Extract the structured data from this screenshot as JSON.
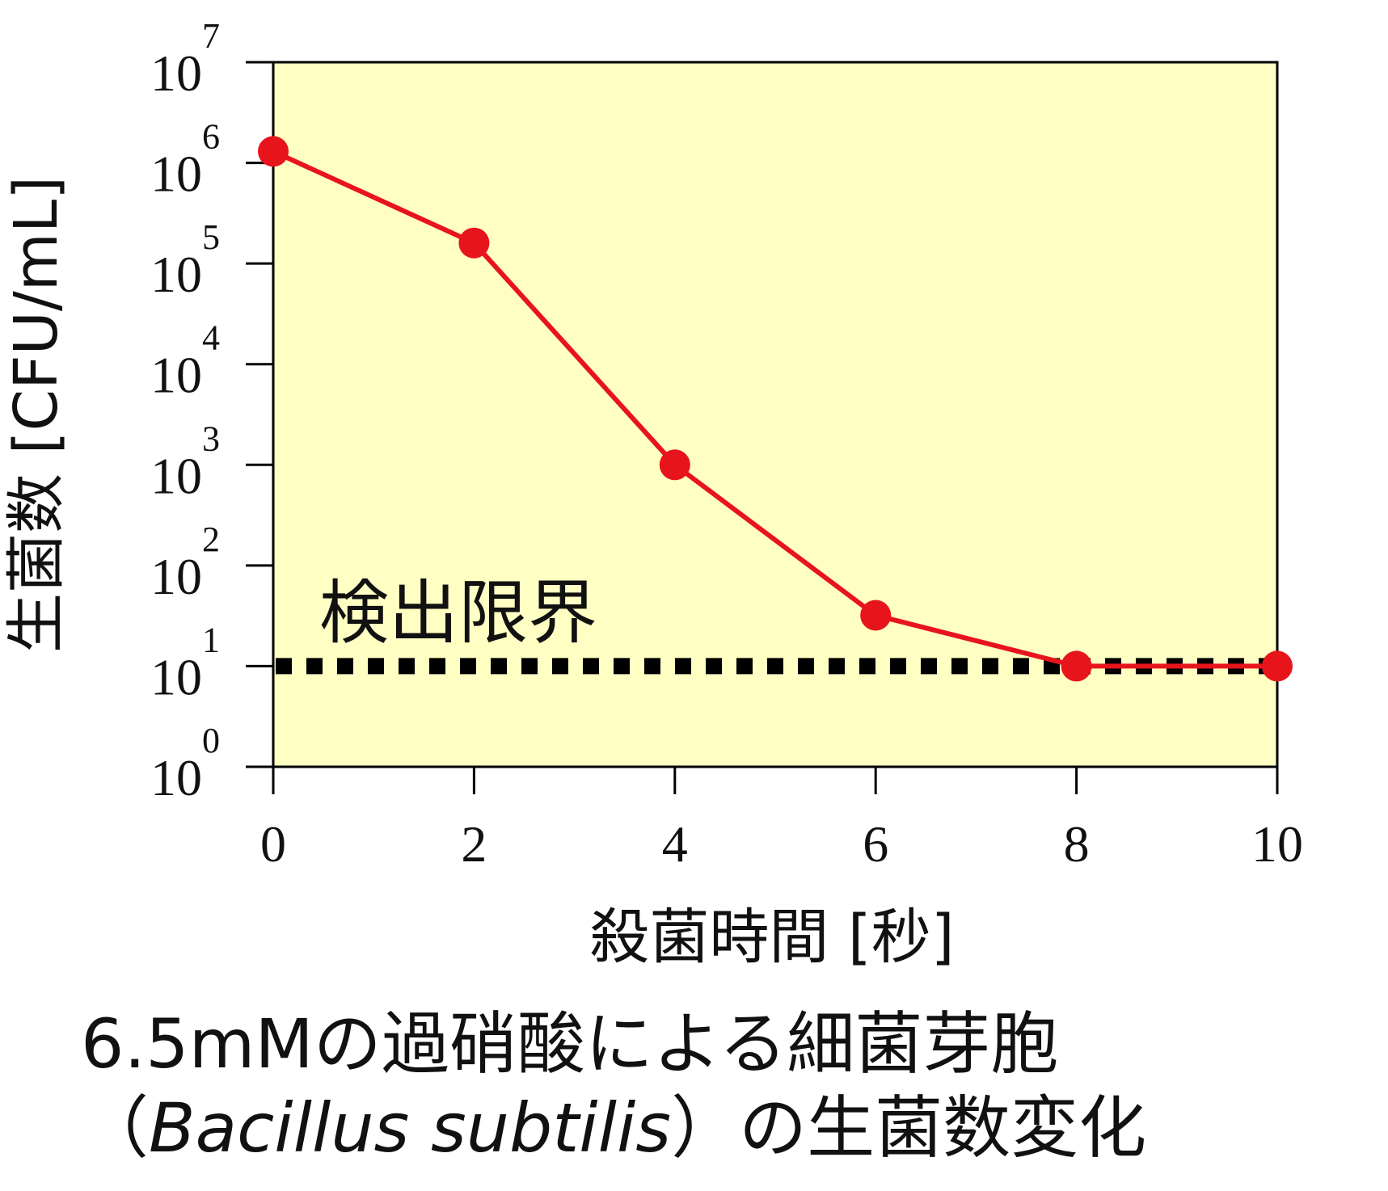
{
  "chart_data": {
    "type": "line",
    "x": [
      0,
      2,
      4,
      6,
      8,
      10
    ],
    "series": [
      {
        "values": [
          1300000,
          160000,
          1000,
          32,
          10,
          10
        ],
        "color": "#e8141c",
        "marker": "circle"
      }
    ],
    "xlabel": "殺菌時間 [秒]",
    "ylabel": "生菌数 [CFU/mL]",
    "xlim": [
      0,
      10
    ],
    "ylim": [
      1,
      10000000
    ],
    "y_scale": "log",
    "x_ticks": [
      "0",
      "2",
      "4",
      "6",
      "8",
      "10"
    ],
    "y_ticks": [
      {
        "base": "10",
        "exp": "0"
      },
      {
        "base": "10",
        "exp": "1"
      },
      {
        "base": "10",
        "exp": "2"
      },
      {
        "base": "10",
        "exp": "3"
      },
      {
        "base": "10",
        "exp": "4"
      },
      {
        "base": "10",
        "exp": "5"
      },
      {
        "base": "10",
        "exp": "6"
      },
      {
        "base": "10",
        "exp": "7"
      }
    ],
    "detection_limit": {
      "label": "検出限界",
      "value": 10,
      "style": "dotted",
      "color": "#000000"
    },
    "plot_background": "#ffffc4",
    "grid": false
  },
  "caption": {
    "text_1": "6.5mMの過硝酸による細菌芽胞（",
    "italic_1": "Bacillus subtilis",
    "text_2": "）の生菌数変化"
  }
}
